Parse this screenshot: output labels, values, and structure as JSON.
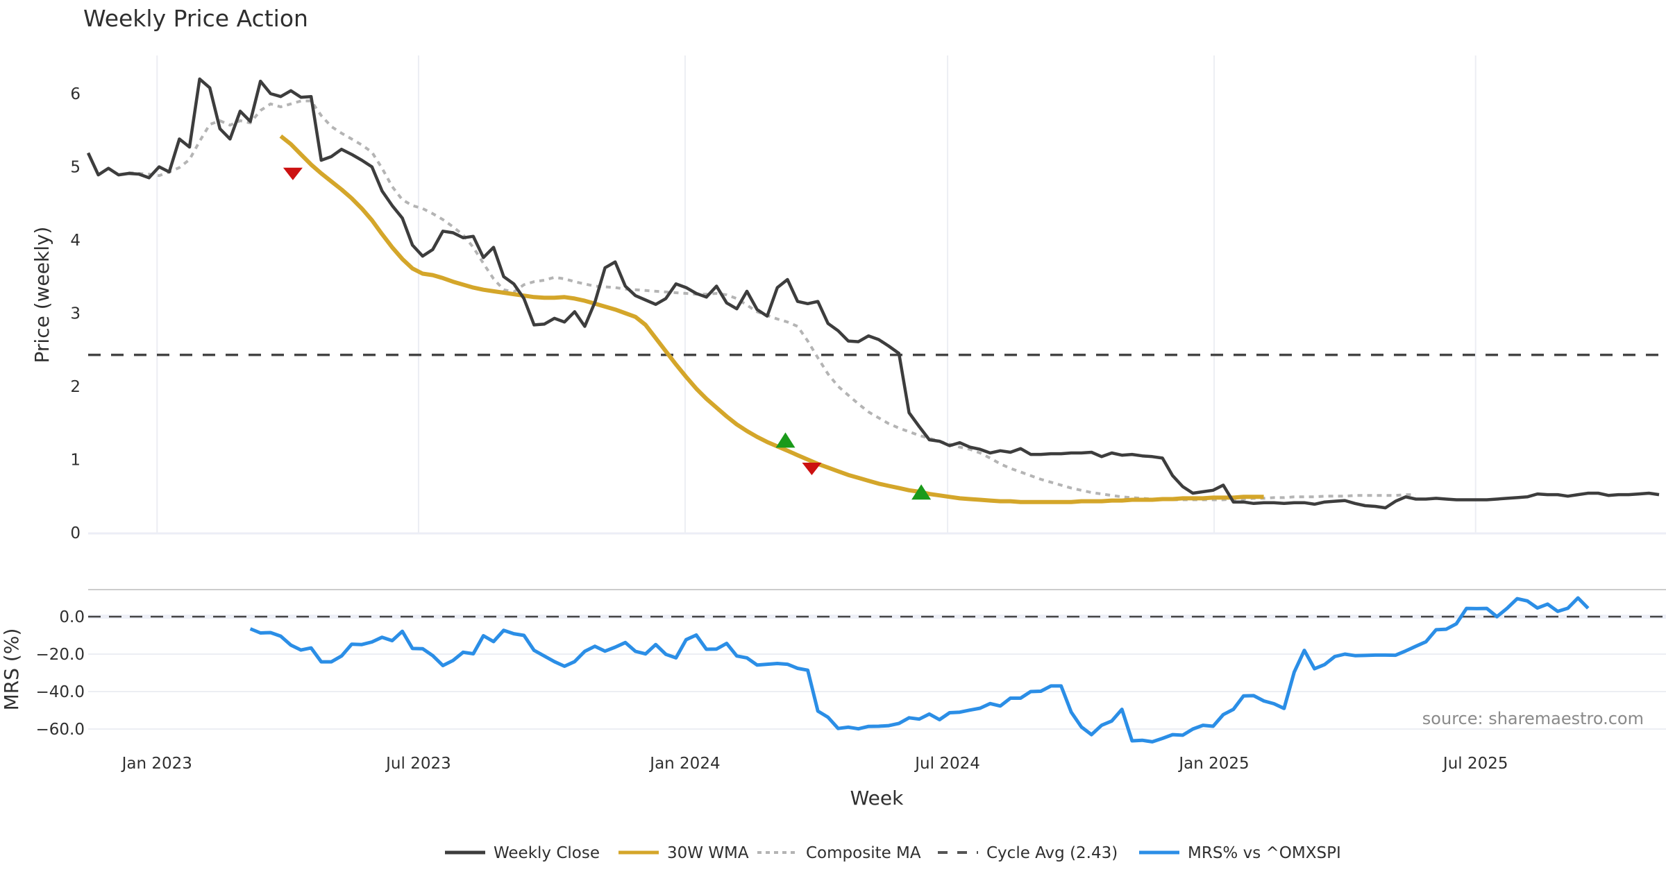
{
  "chart_data": {
    "type": "line",
    "title": "Weekly Price Action",
    "xlabel": "Week",
    "source_note": "source: sharemaestro.com",
    "x_start_week": "2022-11-14",
    "x_step": "1 week",
    "x_ticks": [
      {
        "label": "Jan 2023",
        "week_index": 6.8
      },
      {
        "label": "Jul 2023",
        "week_index": 32.6
      },
      {
        "label": "Jan 2024",
        "week_index": 58.9
      },
      {
        "label": "Jul 2024",
        "week_index": 84.8
      },
      {
        "label": "Jan 2025",
        "week_index": 111.1
      },
      {
        "label": "Jul 2025",
        "week_index": 136.9
      }
    ],
    "x_range_weeks": [
      0,
      155.5
    ],
    "price_panel": {
      "ylabel": "Price (weekly)",
      "ylim": [
        0,
        6.5
      ],
      "yticks": [
        0,
        1,
        2,
        3,
        4,
        5,
        6
      ],
      "cycle_avg": 2.43,
      "series": [
        {
          "name": "Weekly Close",
          "color": "#3d3d3d",
          "style": "solid",
          "start_index": 0,
          "values": [
            5.19,
            4.89,
            4.98,
            4.89,
            4.91,
            4.9,
            4.85,
            5.0,
            4.93,
            5.38,
            5.27,
            6.2,
            6.08,
            5.52,
            5.38,
            5.76,
            5.62,
            6.17,
            6.0,
            5.96,
            6.04,
            5.95,
            5.96,
            5.09,
            5.14,
            5.24,
            5.17,
            5.09,
            5.0,
            4.67,
            4.47,
            4.3,
            3.93,
            3.78,
            3.87,
            4.12,
            4.1,
            4.03,
            4.05,
            3.76,
            3.9,
            3.5,
            3.4,
            3.2,
            2.84,
            2.85,
            2.93,
            2.88,
            3.02,
            2.82,
            3.15,
            3.62,
            3.7,
            3.37,
            3.24,
            3.18,
            3.12,
            3.2,
            3.4,
            3.35,
            3.27,
            3.22,
            3.37,
            3.14,
            3.06,
            3.3,
            3.05,
            2.96,
            3.35,
            3.46,
            3.16,
            3.13,
            3.16,
            2.86,
            2.76,
            2.62,
            2.61,
            2.69,
            2.64,
            2.55,
            2.45,
            1.64,
            1.45,
            1.27,
            1.25,
            1.19,
            1.23,
            1.17,
            1.14,
            1.09,
            1.12,
            1.1,
            1.15,
            1.07,
            1.07,
            1.08,
            1.08,
            1.09,
            1.09,
            1.1,
            1.04,
            1.09,
            1.06,
            1.07,
            1.05,
            1.04,
            1.02,
            0.78,
            0.63,
            0.54,
            0.56,
            0.58,
            0.65,
            0.42,
            0.42,
            0.4,
            0.41,
            0.41,
            0.4,
            0.41,
            0.41,
            0.39,
            0.42,
            0.43,
            0.44,
            0.4,
            0.37,
            0.36,
            0.34,
            0.43,
            0.49,
            0.46,
            0.46,
            0.47,
            0.46,
            0.45,
            0.45,
            0.45,
            0.45,
            0.46,
            0.47,
            0.48,
            0.49,
            0.53,
            0.52,
            0.52,
            0.5,
            0.52,
            0.54,
            0.54,
            0.51,
            0.52,
            0.52,
            0.53,
            0.54,
            0.52
          ]
        },
        {
          "name": "30W WMA",
          "color": "#d4a62a",
          "style": "solid",
          "start_index": 19,
          "values": [
            5.42,
            5.31,
            5.17,
            5.03,
            4.91,
            4.8,
            4.69,
            4.57,
            4.43,
            4.27,
            4.08,
            3.9,
            3.74,
            3.61,
            3.54,
            3.52,
            3.48,
            3.43,
            3.39,
            3.35,
            3.32,
            3.3,
            3.28,
            3.26,
            3.24,
            3.22,
            3.21,
            3.21,
            3.22,
            3.2,
            3.17,
            3.13,
            3.09,
            3.05,
            3.0,
            2.95,
            2.84,
            2.66,
            2.48,
            2.3,
            2.13,
            1.97,
            1.83,
            1.71,
            1.59,
            1.48,
            1.39,
            1.31,
            1.24,
            1.18,
            1.12,
            1.06,
            1.0,
            0.94,
            0.89,
            0.84,
            0.79,
            0.75,
            0.71,
            0.67,
            0.64,
            0.61,
            0.58,
            0.56,
            0.53,
            0.51,
            0.49,
            0.47,
            0.46,
            0.45,
            0.44,
            0.43,
            0.43,
            0.42,
            0.42,
            0.42,
            0.42,
            0.42,
            0.42,
            0.43,
            0.43,
            0.43,
            0.44,
            0.44,
            0.45,
            0.45,
            0.45,
            0.46,
            0.46,
            0.47,
            0.47,
            0.47,
            0.48,
            0.48,
            0.48,
            0.49,
            0.49,
            0.49
          ]
        },
        {
          "name": "Composite MA",
          "color": "#b4b4b4",
          "style": "dotted",
          "start_index": 4,
          "values": [
            4.92,
            4.91,
            4.9,
            4.88,
            4.93,
            4.99,
            5.1,
            5.35,
            5.58,
            5.63,
            5.57,
            5.63,
            5.6,
            5.77,
            5.86,
            5.82,
            5.86,
            5.9,
            5.9,
            5.7,
            5.55,
            5.46,
            5.38,
            5.3,
            5.2,
            4.98,
            4.73,
            4.55,
            4.47,
            4.43,
            4.36,
            4.28,
            4.18,
            4.07,
            3.9,
            3.68,
            3.47,
            3.32,
            3.29,
            3.39,
            3.43,
            3.45,
            3.49,
            3.47,
            3.43,
            3.4,
            3.37,
            3.36,
            3.35,
            3.33,
            3.32,
            3.31,
            3.3,
            3.29,
            3.28,
            3.27,
            3.26,
            3.26,
            3.27,
            3.25,
            3.2,
            3.11,
            3.02,
            2.97,
            2.92,
            2.88,
            2.82,
            2.62,
            2.39,
            2.17,
            2.0,
            1.88,
            1.76,
            1.65,
            1.57,
            1.49,
            1.43,
            1.38,
            1.33,
            1.29,
            1.25,
            1.21,
            1.17,
            1.14,
            1.09,
            1.02,
            0.94,
            0.88,
            0.83,
            0.78,
            0.73,
            0.69,
            0.65,
            0.61,
            0.58,
            0.55,
            0.53,
            0.51,
            0.49,
            0.48,
            0.47,
            0.46,
            0.45,
            0.45,
            0.45,
            0.45,
            0.45,
            0.45,
            0.45,
            0.46,
            0.46,
            0.47,
            0.47,
            0.48,
            0.48,
            0.49,
            0.49,
            0.49,
            0.5,
            0.5,
            0.5,
            0.51,
            0.51,
            0.51,
            0.51,
            0.51,
            0.52,
            0.52
          ]
        },
        {
          "name": "Cycle Avg (2.43)",
          "color": "#444444",
          "style": "dashed",
          "constant": 2.43
        }
      ],
      "signals": [
        {
          "type": "sell",
          "week_index": 20.2,
          "value": 4.95,
          "color": "#cc1111"
        },
        {
          "type": "buy",
          "week_index": 68.8,
          "value": 1.2,
          "color": "#1a9a1a"
        },
        {
          "type": "sell",
          "week_index": 71.4,
          "value": 0.92,
          "color": "#cc1111"
        },
        {
          "type": "buy",
          "week_index": 82.2,
          "value": 0.49,
          "color": "#1a9a1a"
        }
      ]
    },
    "mrs_panel": {
      "ylabel": "MRS (%)",
      "ylim": [
        -72,
        14
      ],
      "yticks": [
        0.0,
        -20.0,
        -40.0,
        -60.0
      ],
      "ytick_labels": [
        "0.0",
        "−20.0",
        "−40.0",
        "−60.0"
      ],
      "zero_line": 0.0,
      "series": [
        {
          "name": "MRS% vs ^OMXSPI",
          "color": "#2b8ee6",
          "style": "solid",
          "start_index": 16,
          "values": [
            -6.5,
            -8.7,
            -8.5,
            -10.4,
            -15.2,
            -17.8,
            -16.7,
            -24.1,
            -24.1,
            -21.0,
            -14.7,
            -14.9,
            -13.5,
            -11.0,
            -12.8,
            -7.8,
            -17.0,
            -17.1,
            -20.8,
            -26.1,
            -23.4,
            -19.0,
            -19.8,
            -10.2,
            -13.3,
            -7.3,
            -9.1,
            -10.0,
            -18.0,
            -21.0,
            -24.0,
            -26.5,
            -24.0,
            -18.5,
            -15.8,
            -18.4,
            -16.3,
            -13.8,
            -18.5,
            -19.9,
            -14.9,
            -20.1,
            -22.0,
            -12.3,
            -9.8,
            -17.4,
            -17.3,
            -14.3,
            -21.0,
            -22.0,
            -25.8,
            -25.4,
            -25.0,
            -25.4,
            -27.6,
            -28.6,
            -50.4,
            -53.7,
            -59.7,
            -59.0,
            -59.9,
            -58.6,
            -58.5,
            -58.2,
            -57.0,
            -54.0,
            -54.7,
            -52.0,
            -55.0,
            -51.3,
            -51.0,
            -49.9,
            -48.9,
            -46.4,
            -47.7,
            -43.5,
            -43.5,
            -40.0,
            -39.8,
            -37.0,
            -37.0,
            -51.0,
            -58.9,
            -63.0,
            -58.0,
            -55.7,
            -49.5,
            -66.3,
            -66.0,
            -66.8,
            -65.0,
            -63.0,
            -63.3,
            -60.0,
            -58.0,
            -58.5,
            -52.3,
            -49.5,
            -42.3,
            -42.2,
            -45.0,
            -46.5,
            -49.0,
            -29.6,
            -18.0,
            -27.8,
            -25.6,
            -21.3,
            -20.0,
            -20.8,
            -20.7,
            -20.5,
            -20.5,
            -20.6,
            -18.3,
            -15.8,
            -13.4,
            -7.0,
            -6.7,
            -3.8,
            4.4,
            4.3,
            4.4,
            0.0,
            4.4,
            9.6,
            8.4,
            4.6,
            6.7,
            2.8,
            4.5,
            10.0,
            4.5
          ]
        }
      ]
    },
    "legend": {
      "placement": "bottom-center",
      "entries": [
        {
          "label": "Weekly Close",
          "color": "#3d3d3d",
          "style": "solid"
        },
        {
          "label": "30W WMA",
          "color": "#d4a62a",
          "style": "solid"
        },
        {
          "label": "Composite MA",
          "color": "#b4b4b4",
          "style": "dotted"
        },
        {
          "label": "Cycle Avg (2.43)",
          "color": "#555555",
          "style": "dashed"
        },
        {
          "label": "MRS% vs ^OMXSPI",
          "color": "#2b8ee6",
          "style": "solid"
        }
      ]
    },
    "grid": true
  }
}
